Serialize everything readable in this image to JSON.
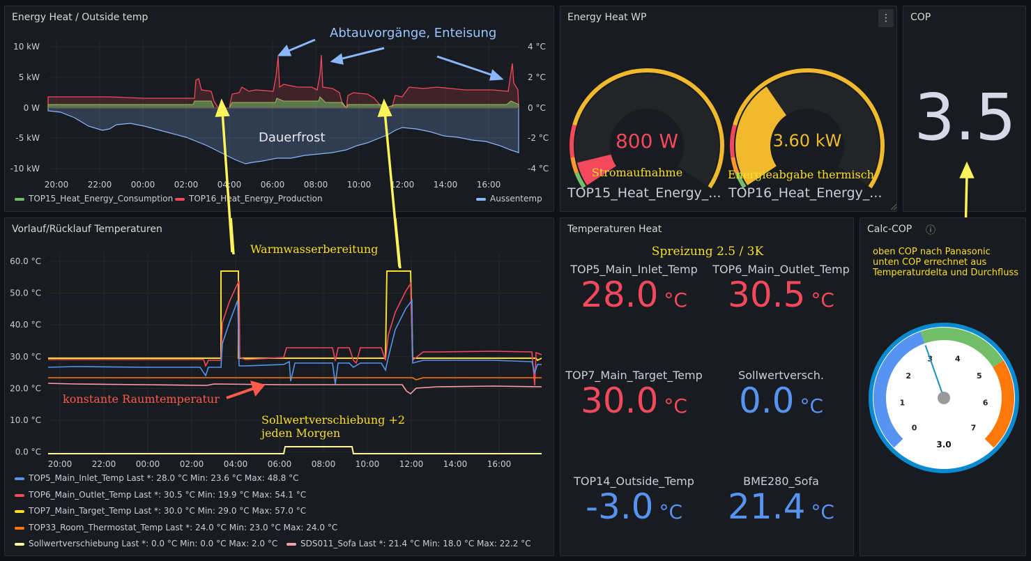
{
  "panel1": {
    "title": "Energy Heat / Outside temp",
    "y_left_ticks": [
      "10 kW",
      "5 kW",
      "0 W",
      "-5 kW",
      "-10 kW"
    ],
    "y_right_ticks": [
      "4 °C",
      "2 °C",
      "0 °C",
      "-2 °C",
      "-4 °C"
    ],
    "x_ticks": [
      "20:00",
      "22:00",
      "00:00",
      "02:00",
      "04:00",
      "06:00",
      "08:00",
      "10:00",
      "12:00",
      "14:00",
      "16:00"
    ],
    "legend": [
      {
        "label": "TOP15_Heat_Energy_Consumption",
        "color": "#73bf69"
      },
      {
        "label": "TOP16_Heat_Energy_Production",
        "color": "#f2495c"
      },
      {
        "label": "Aussentemp",
        "color": "#8ab8ff"
      }
    ],
    "annotation_top": "Abtauvorgänge, Enteisung",
    "annotation_mid": "Dauerfrost"
  },
  "panel2": {
    "title": "Energy Heat WP",
    "menu_icon": "⋮",
    "gauge1": {
      "value": "800 W",
      "caption": "Stromaufnahme",
      "name": "TOP15_Heat_Energy_...",
      "fraction": 0.08,
      "color": "#f2495c"
    },
    "gauge2": {
      "value": "3.60 kW",
      "caption": "Energieabgabe thermisch",
      "name": "TOP16_Heat_Energy_...",
      "fraction": 0.36,
      "color": "#f0b92e"
    }
  },
  "panel3": {
    "title": "COP",
    "value": "3.5"
  },
  "panel4": {
    "title": "Vorlauf/Rücklauf Temperaturen",
    "y_ticks": [
      "60.0 °C",
      "50.0 °C",
      "40.0 °C",
      "30.0 °C",
      "20.0 °C",
      "10.0 °C",
      "0.0 °C"
    ],
    "x_ticks": [
      "20:00",
      "22:00",
      "00:00",
      "02:00",
      "04:00",
      "06:00",
      "08:00",
      "10:00",
      "12:00",
      "14:00",
      "16:00"
    ],
    "annotation_ww": "Warmwasserbereitung",
    "annotation_room": "konstante Raumtemperatur",
    "annotation_soll_1": "Sollwertverschiebung +2",
    "annotation_soll_2": "jeden Morgen",
    "legend": [
      {
        "label": "TOP5_Main_Inlet_Temp",
        "stats": "Last *: 28.0 °C   Min: 23.6 °C   Max: 48.8 °C",
        "color": "#5794f2"
      },
      {
        "label": "TOP6_Main_Outlet_Temp",
        "stats": "Last *: 30.5 °C   Min: 19.9 °C   Max: 54.1 °C",
        "color": "#f2495c"
      },
      {
        "label": "TOP7_Main_Target_Temp",
        "stats": "Last *: 30.0 °C   Min: 29.0 °C   Max: 57.0 °C",
        "color": "#fade2a"
      },
      {
        "label": "TOP33_Room_Thermostat_Temp",
        "stats": "Last *: 24.0 °C   Min: 23.0 °C   Max: 24.0 °C",
        "color": "#ff780a"
      },
      {
        "label": "Sollwertverschiebung",
        "stats": "Last *: 0.0 °C   Min: 0.0 °C   Max: 2.0 °C",
        "color": "#fff899"
      },
      {
        "label": "SDS011_Sofa",
        "stats": "Last *: 21.4 °C   Min: 18.0 °C   Max: 22.2 °C",
        "color": "#ff9eab"
      }
    ]
  },
  "panel5": {
    "title": "Temperaturen Heat",
    "subtitle": "Spreizung 2.5 / 3K",
    "stats": [
      {
        "label": "TOP5_Main_Inlet_Temp",
        "value": "28.0",
        "unit": "°C",
        "color": "#f2495c"
      },
      {
        "label": "TOP6_Main_Outlet_Temp",
        "value": "30.5",
        "unit": "°C",
        "color": "#f2495c"
      },
      {
        "label": "TOP7_Main_Target_Temp",
        "value": "30.0",
        "unit": "°C",
        "color": "#f2495c"
      },
      {
        "label": "Sollwertversch.",
        "value": "0.0",
        "unit": "°C",
        "color": "#5794f2"
      },
      {
        "label": "TOP14_Outside_Temp",
        "value": "-3.0",
        "unit": "°C",
        "color": "#5794f2"
      },
      {
        "label": "BME280_Sofa",
        "value": "21.4",
        "unit": "°C",
        "color": "#5794f2"
      }
    ]
  },
  "panel6": {
    "title": "Calc-COP",
    "info_icon": "ⓘ",
    "note_1": "oben COP nach Panasonic",
    "note_2": "unten COP errechnet aus",
    "note_3": "Temperaturdelta und Durchfluss",
    "dial_labels": [
      "0",
      "1",
      "2",
      "3",
      "4",
      "5",
      "6",
      "7"
    ],
    "value": "3.0",
    "value_num": 3.0
  }
}
